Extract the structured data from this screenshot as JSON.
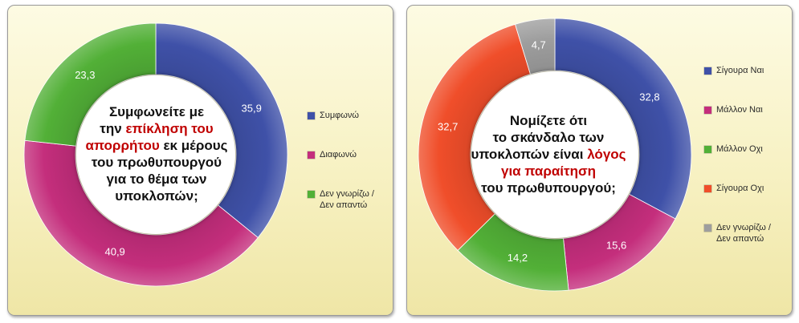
{
  "chart_data": [
    {
      "type": "pie",
      "question": [
        {
          "segments": [
            {
              "text": "Συμφωνείτε με",
              "highlight": false
            }
          ]
        },
        {
          "segments": [
            {
              "text": "την ",
              "highlight": false
            },
            {
              "text": "επίκληση του",
              "highlight": true
            }
          ]
        },
        {
          "segments": [
            {
              "text": "απορρήτου",
              "highlight": true
            },
            {
              "text": " εκ μέρους",
              "highlight": false
            }
          ]
        },
        {
          "segments": [
            {
              "text": "του πρωθυπουργού",
              "highlight": false
            }
          ]
        },
        {
          "segments": [
            {
              "text": "για το θέμα των",
              "highlight": false
            }
          ]
        },
        {
          "segments": [
            {
              "text": "υποκλοπών;",
              "highlight": false
            }
          ]
        }
      ],
      "slices": [
        {
          "label": "Συμφωνώ",
          "value": 35.9,
          "value_label": "35,9",
          "color": "#3f51a8"
        },
        {
          "label": "Διαφωνώ",
          "value": 40.9,
          "value_label": "40,9",
          "color": "#c42e7c"
        },
        {
          "label": "Δεν γνωρίζω /\nΔεν απαντώ",
          "value": 23.3,
          "value_label": "23,3",
          "color": "#52b037"
        }
      ]
    },
    {
      "type": "pie",
      "question": [
        {
          "segments": [
            {
              "text": "Νομίζετε ότι",
              "highlight": false
            }
          ]
        },
        {
          "segments": [
            {
              "text": "το σκάνδαλο των",
              "highlight": false
            }
          ]
        },
        {
          "segments": [
            {
              "text": "υποκλοπών είναι ",
              "highlight": false
            },
            {
              "text": "λόγος",
              "highlight": true
            }
          ]
        },
        {
          "segments": [
            {
              "text": "για παραίτηση",
              "highlight": true
            }
          ]
        },
        {
          "segments": [
            {
              "text": "του πρωθυπουργού;",
              "highlight": false
            }
          ]
        }
      ],
      "slices": [
        {
          "label": "Σίγουρα Ναι",
          "value": 32.8,
          "value_label": "32,8",
          "color": "#3f51a8"
        },
        {
          "label": "Μάλλον Ναι",
          "value": 15.6,
          "value_label": "15,6",
          "color": "#c42e7c"
        },
        {
          "label": "Μάλλον Οχι",
          "value": 14.2,
          "value_label": "14,2",
          "color": "#52b037"
        },
        {
          "label": "Σίγουρα Οχι",
          "value": 32.7,
          "value_label": "32,7",
          "color": "#f04e2a"
        },
        {
          "label": "Δεν γνωρίζω /\nΔεν απαντώ",
          "value": 4.7,
          "value_label": "4,7",
          "color": "#9e9e9e"
        }
      ]
    }
  ]
}
